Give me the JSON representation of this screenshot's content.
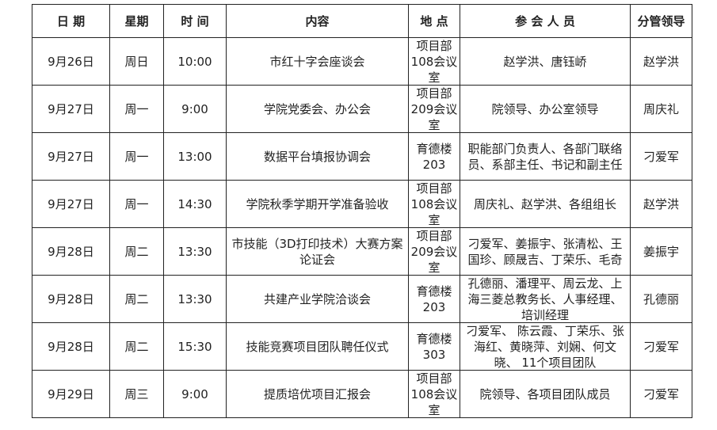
{
  "headers": [
    "日 期",
    "星期",
    "时 间",
    "内容",
    "地 点",
    "参 会 人 员",
    "分管领导"
  ],
  "rows": [
    [
      "9月26日",
      "周日",
      "10:00",
      "市红十字会座谈会",
      "项目部108会议室",
      "赵学洪、唐钰峤",
      "赵学洪"
    ],
    [
      "9月27日",
      "周一",
      "9:00",
      "学院党委会、办公会",
      "项目部209会议室",
      "院领导、办公室领导",
      "周庆礼"
    ],
    [
      "9月27日",
      "周一",
      "13:00",
      "数据平台填报协调会",
      "育德楼203",
      "职能部门负责人、各部门联络员、系部主任、书记和副主任",
      "刁爱军"
    ],
    [
      "9月27日",
      "周一",
      "14:30",
      "学院秋季学期开学准备验收",
      "项目部108会议室",
      "周庆礼、赵学洪、各组组长",
      "赵学洪"
    ],
    [
      "9月28日",
      "周二",
      "13:30",
      "市技能（3D打印技术）大赛方案论证会",
      "项目部209会议室",
      "刁爱军、姜振宇、张清松、王国珍、顾晟吉、丁荣乐、毛奇",
      "姜振宇"
    ],
    [
      "9月28日",
      "周二",
      "13:30",
      "共建产业学院洽谈会",
      "育德楼203",
      "孔德丽、潘理平、周云龙、上海三菱总教务长、人事经理、培训经理",
      "孔德丽"
    ],
    [
      "9月28日",
      "周二",
      "15:30",
      "技能竞赛项目团队聘任仪式",
      "育德楼303",
      "刁爱军、 陈云霞、丁荣乐、张海红、黄晓萍、刘娴、何文晓、 11个项目团队",
      "刁爱军"
    ],
    [
      "9月29日",
      "周三",
      "9:00",
      "提质培优项目汇报会",
      "项目部108会议室",
      "院领导、各项目团队成员",
      "刁爱军"
    ]
  ]
}
